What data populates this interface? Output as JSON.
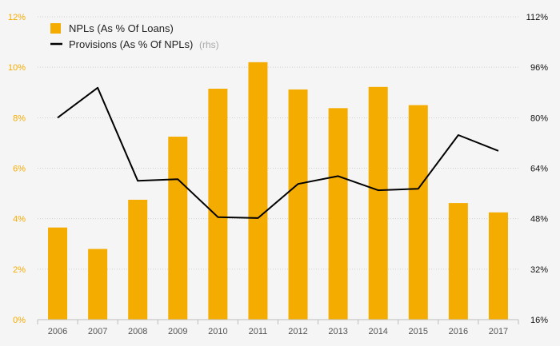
{
  "chart_data": {
    "type": "bar+line",
    "categories": [
      "2006",
      "2007",
      "2008",
      "2009",
      "2010",
      "2011",
      "2012",
      "2013",
      "2014",
      "2015",
      "2016",
      "2017"
    ],
    "series": [
      {
        "name": "NPLs (As % Of Loans)",
        "type": "bar",
        "axis": "left",
        "color": "#f5ac00",
        "values": [
          3.65,
          2.8,
          4.75,
          7.25,
          9.15,
          10.2,
          9.12,
          8.38,
          9.22,
          8.5,
          4.62,
          4.25
        ]
      },
      {
        "name": "Provisions (As % Of NPLs)",
        "axis_note": "(rhs)",
        "type": "line",
        "axis": "right",
        "color": "#000000",
        "values": [
          80.0,
          89.5,
          60.0,
          60.5,
          48.5,
          48.2,
          59.0,
          61.5,
          57.0,
          57.5,
          74.5,
          69.5
        ]
      }
    ],
    "left_axis": {
      "min": 0,
      "max": 12,
      "step": 2,
      "ticks": [
        "0%",
        "2%",
        "4%",
        "6%",
        "8%",
        "10%",
        "12%"
      ],
      "color": "#f5ac00"
    },
    "right_axis": {
      "min": 16,
      "max": 112,
      "step": 16,
      "ticks": [
        "16%",
        "32%",
        "48%",
        "64%",
        "80%",
        "96%",
        "112%"
      ]
    },
    "grid": true,
    "legend_position": "top-left"
  }
}
